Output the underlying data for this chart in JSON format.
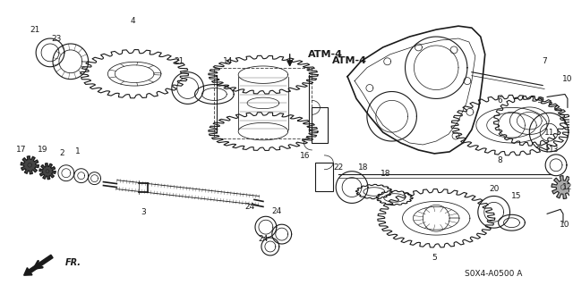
{
  "bg_color": "#ffffff",
  "line_color": "#1a1a1a",
  "part_code": "S0X4-A0500 A",
  "atm4_label": "ATM-4",
  "fr_label": "FR."
}
